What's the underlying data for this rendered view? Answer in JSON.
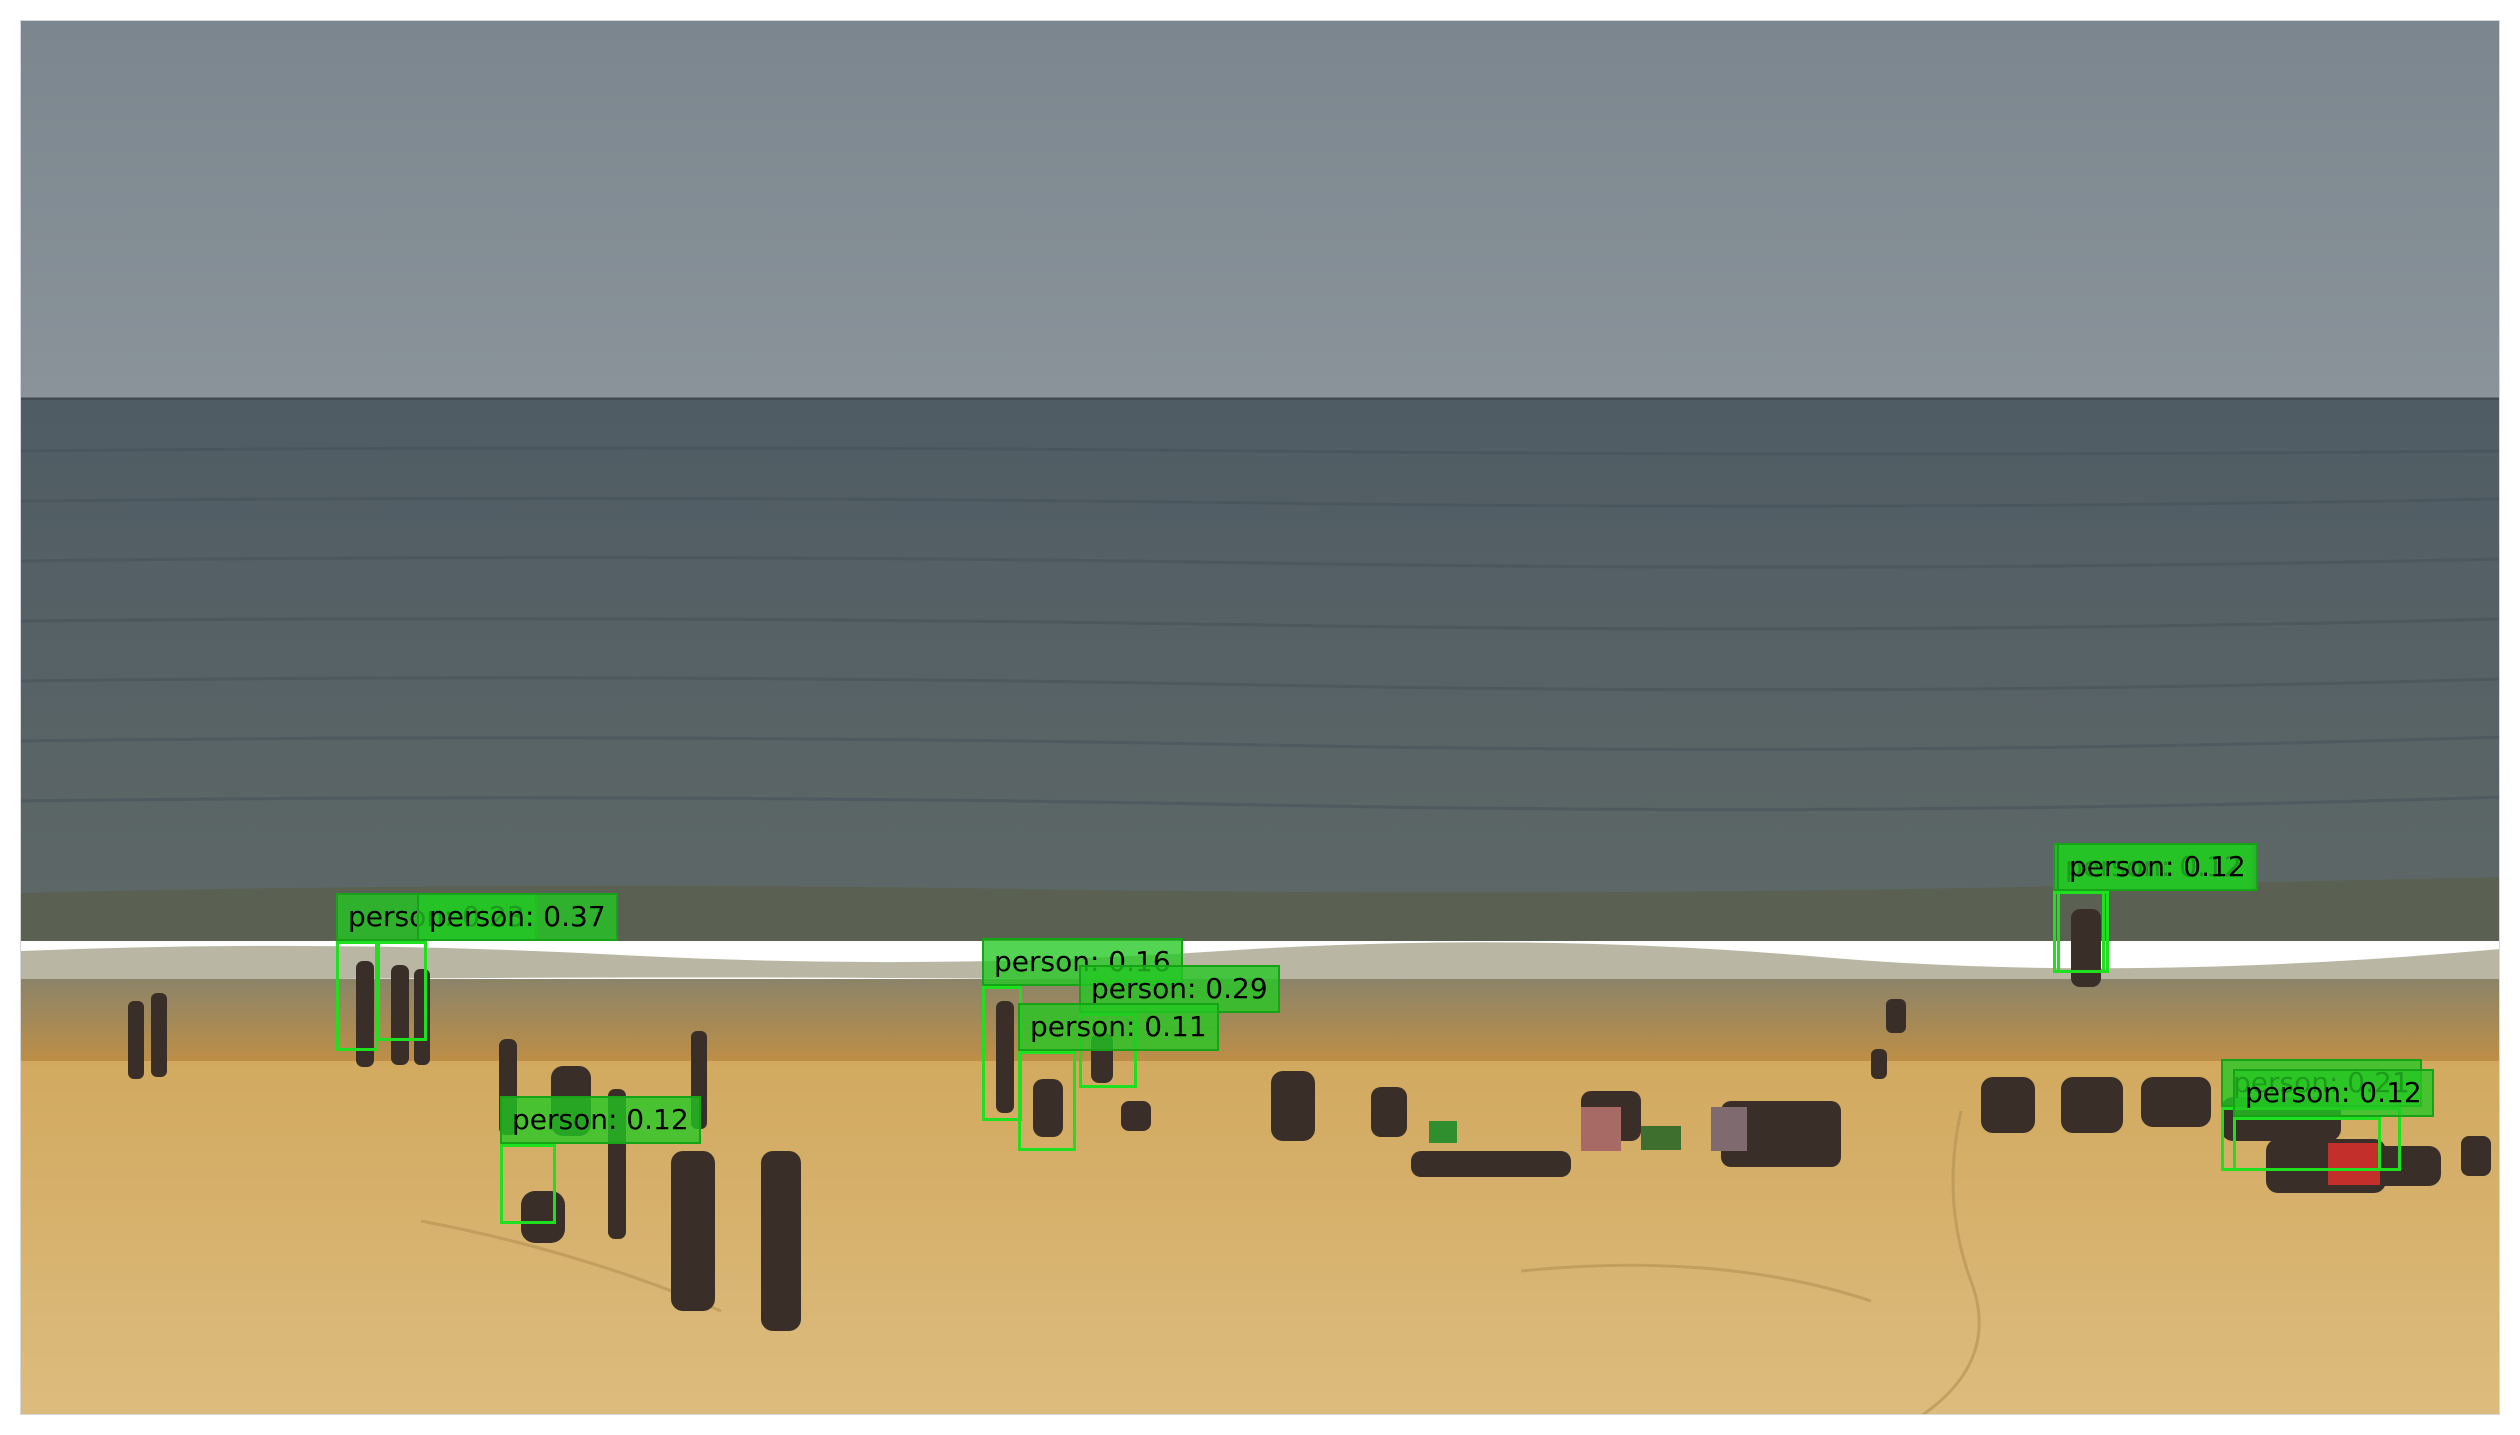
{
  "image": {
    "subject": "beach-scene",
    "colors": {
      "sky": "#7f8a92",
      "sea": "#56636a",
      "surf": "#b8b6a2",
      "wet_sand": "#c59a4e",
      "sand": "#d8b572",
      "box": "#1ee01e",
      "label_bg": "#22c822",
      "label_text": "#000000"
    }
  },
  "detections": [
    {
      "label": "person: 0.23"
    },
    {
      "label": "person: 0.37"
    },
    {
      "label": "person: 0.16"
    },
    {
      "label": "person: 0.29"
    },
    {
      "label": "person: 0.11"
    },
    {
      "label": "person: 0.12"
    },
    {
      "label": "person: 0.12"
    },
    {
      "label": "person: 0.12"
    },
    {
      "label": "person: 0.21"
    },
    {
      "label": "person: 0.12"
    }
  ]
}
